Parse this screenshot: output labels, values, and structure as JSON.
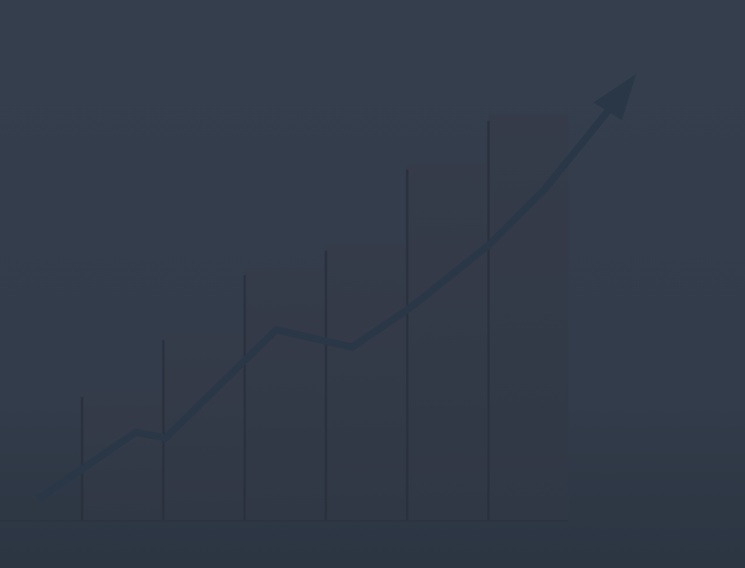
{
  "colors": {
    "background": "#323c4a",
    "background_top": "#343e4c",
    "background_bottom": "#2c3542",
    "bar_fill": "#343a48",
    "bar_edge": "#2a313d",
    "trend_line": "#2a3747",
    "baseline": "#2b3340"
  },
  "illustration": {
    "bar_count": 6,
    "relative_bar_levels": [
      0.32,
      0.46,
      0.62,
      0.68,
      0.88,
      1.0
    ],
    "trend_direction": "upward",
    "trend_end_marker": "arrowhead"
  }
}
